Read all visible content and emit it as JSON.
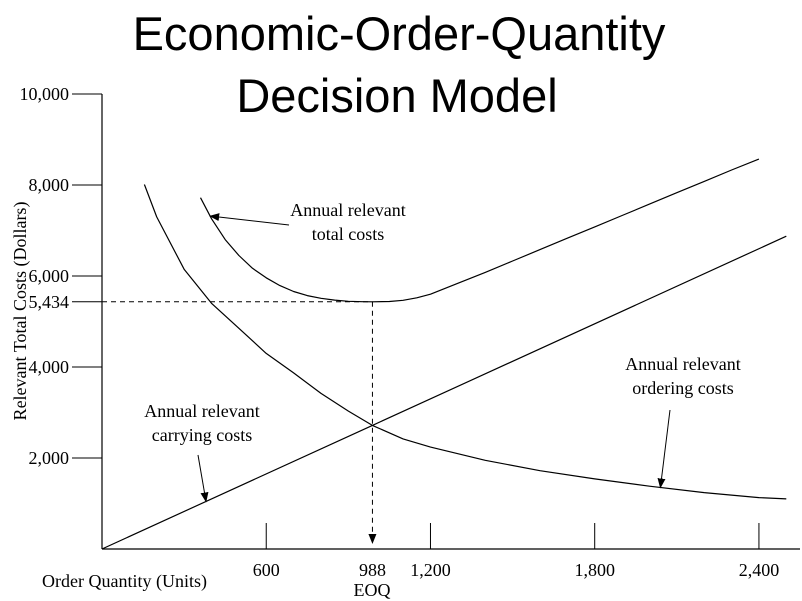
{
  "chart_data": {
    "type": "line",
    "title": [
      "Economic-Order-Quantity",
      "Decision Model"
    ],
    "xlabel": "Order Quantity (Units)",
    "ylabel": "Relevant Total Costs (Dollars)",
    "xlim": [
      0,
      2550
    ],
    "ylim": [
      0,
      10000
    ],
    "x_ticks": [
      {
        "value": 600,
        "label": "600"
      },
      {
        "value": 988,
        "label": "988"
      },
      {
        "value": 1200,
        "label": "1,200"
      },
      {
        "value": 1800,
        "label": "1,800"
      },
      {
        "value": 2400,
        "label": "2,400"
      }
    ],
    "y_ticks": [
      {
        "value": 2000,
        "label": "2,000"
      },
      {
        "value": 4000,
        "label": "4,000"
      },
      {
        "value": 5434,
        "label": "5,434"
      },
      {
        "value": 6000,
        "label": "6,000"
      },
      {
        "value": 8000,
        "label": "8,000"
      },
      {
        "value": 10000,
        "label": "10,000"
      }
    ],
    "eoq": {
      "x": 988,
      "y": 5434,
      "label": "EOQ"
    },
    "series": [
      {
        "name": "Annual relevant total costs",
        "x": [
          360,
          400,
          450,
          500,
          550,
          600,
          650,
          700,
          750,
          800,
          850,
          900,
          950,
          988,
          1050,
          1100,
          1150,
          1200,
          1300,
          1400,
          1500,
          1600,
          1700,
          1800,
          1900,
          2000,
          2100,
          2200,
          2300,
          2400
        ],
        "values": [
          7720,
          7260,
          6800,
          6450,
          6170,
          5960,
          5790,
          5660,
          5570,
          5510,
          5470,
          5445,
          5436,
          5434,
          5440,
          5465,
          5520,
          5600,
          5840,
          6080,
          6330,
          6580,
          6830,
          7080,
          7330,
          7580,
          7830,
          8080,
          8330,
          8570
        ]
      },
      {
        "name": "Annual relevant carrying costs",
        "x": [
          0,
          988,
          2500
        ],
        "values": [
          0,
          2717,
          6875
        ]
      },
      {
        "name": "Annual relevant ordering costs",
        "x": [
          155,
          200,
          300,
          400,
          500,
          600,
          700,
          800,
          900,
          988,
          1100,
          1200,
          1400,
          1600,
          1800,
          2000,
          2200,
          2400,
          2500
        ],
        "values": [
          8010,
          7300,
          6150,
          5400,
          4850,
          4300,
          3870,
          3420,
          3030,
          2717,
          2420,
          2240,
          1950,
          1720,
          1540,
          1380,
          1240,
          1130,
          1100
        ]
      }
    ],
    "annotations": [
      {
        "lines": [
          "Annual relevant",
          "total costs"
        ],
        "series": 0,
        "point_x": 395
      },
      {
        "lines": [
          "Annual relevant",
          "ordering costs"
        ],
        "series": 2,
        "point_x": 2040
      },
      {
        "lines": [
          "Annual relevant",
          "carrying costs"
        ],
        "series": 1,
        "point_x": 380
      }
    ],
    "grid": false,
    "legend": "none"
  }
}
